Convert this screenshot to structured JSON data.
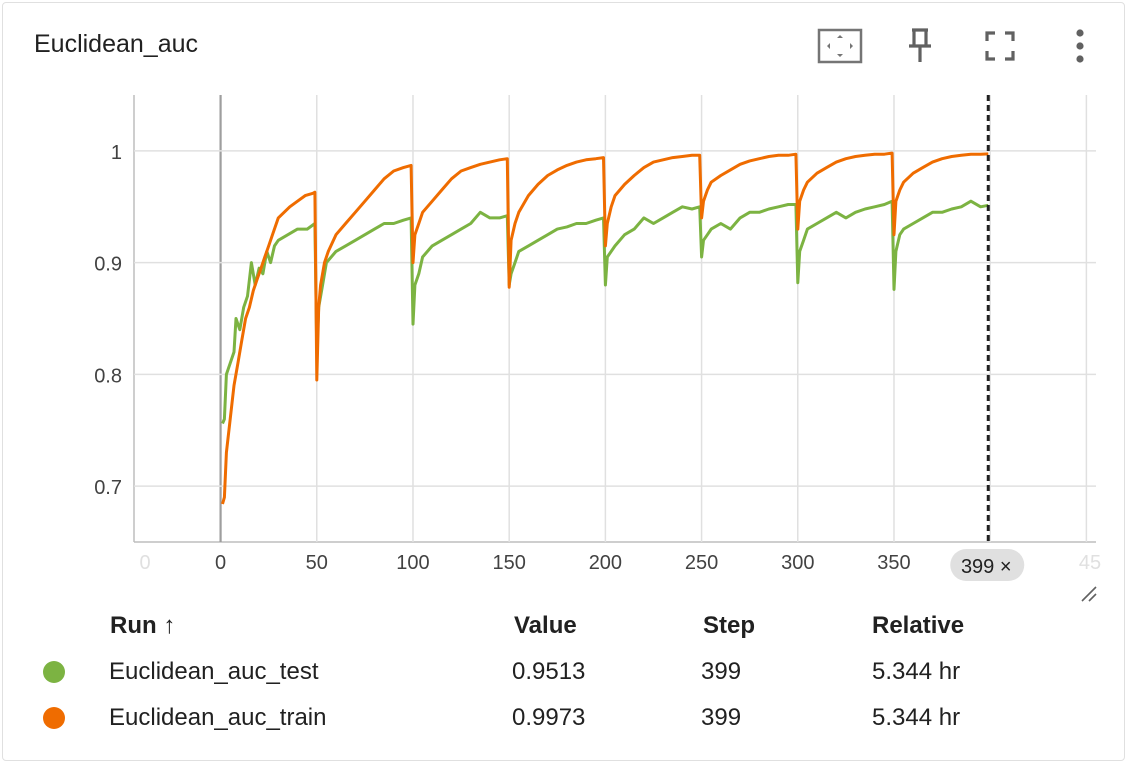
{
  "card": {
    "title": "Euclidean_auc"
  },
  "toolbar": {
    "fit_icon": "fit-domain-icon",
    "pin_icon": "pin-icon",
    "fullscreen_icon": "fullscreen-icon",
    "more_icon": "more-vert-icon"
  },
  "chart_data": {
    "type": "line",
    "title": "Euclidean_auc",
    "xlabel": "",
    "ylabel": "",
    "xlim": [
      -45,
      455
    ],
    "ylim": [
      0.65,
      1.05
    ],
    "x_ticks": [
      "0",
      "0",
      "50",
      "100",
      "150",
      "200",
      "250",
      "300",
      "350",
      "45"
    ],
    "y_ticks": [
      "0.7",
      "0.8",
      "0.9",
      "1"
    ],
    "cursor_step": 399,
    "cursor_label": "399",
    "grid": true,
    "series": [
      {
        "name": "Euclidean_auc_test",
        "color": "#7cb342",
        "x": [
          1,
          2,
          3,
          5,
          7,
          8,
          10,
          12,
          14,
          16,
          18,
          20,
          22,
          24,
          26,
          28,
          30,
          35,
          40,
          45,
          49,
          50,
          51,
          53,
          55,
          60,
          65,
          70,
          75,
          80,
          85,
          90,
          95,
          99,
          100,
          101,
          103,
          105,
          110,
          115,
          120,
          125,
          130,
          135,
          140,
          145,
          149,
          150,
          151,
          153,
          155,
          160,
          165,
          170,
          175,
          180,
          185,
          190,
          195,
          199,
          200,
          201,
          203,
          205,
          210,
          215,
          220,
          225,
          230,
          235,
          240,
          245,
          249,
          250,
          251,
          253,
          255,
          260,
          265,
          270,
          275,
          280,
          285,
          290,
          295,
          299,
          300,
          301,
          303,
          305,
          310,
          315,
          320,
          325,
          330,
          335,
          340,
          345,
          349,
          350,
          351,
          353,
          355,
          360,
          365,
          370,
          375,
          380,
          385,
          390,
          395,
          399
        ],
        "y": [
          0.756,
          0.76,
          0.8,
          0.81,
          0.82,
          0.85,
          0.84,
          0.86,
          0.87,
          0.9,
          0.88,
          0.895,
          0.89,
          0.91,
          0.9,
          0.915,
          0.92,
          0.925,
          0.93,
          0.93,
          0.935,
          0.82,
          0.86,
          0.88,
          0.9,
          0.91,
          0.915,
          0.92,
          0.925,
          0.93,
          0.935,
          0.935,
          0.938,
          0.94,
          0.845,
          0.88,
          0.89,
          0.905,
          0.915,
          0.92,
          0.925,
          0.93,
          0.935,
          0.945,
          0.94,
          0.94,
          0.942,
          0.88,
          0.89,
          0.9,
          0.91,
          0.915,
          0.92,
          0.925,
          0.93,
          0.932,
          0.935,
          0.935,
          0.938,
          0.94,
          0.88,
          0.905,
          0.91,
          0.915,
          0.925,
          0.93,
          0.94,
          0.935,
          0.94,
          0.945,
          0.95,
          0.948,
          0.95,
          0.905,
          0.92,
          0.925,
          0.93,
          0.935,
          0.93,
          0.94,
          0.945,
          0.945,
          0.948,
          0.95,
          0.952,
          0.952,
          0.882,
          0.91,
          0.92,
          0.93,
          0.935,
          0.94,
          0.945,
          0.94,
          0.945,
          0.948,
          0.95,
          0.952,
          0.955,
          0.876,
          0.91,
          0.925,
          0.93,
          0.935,
          0.94,
          0.945,
          0.945,
          0.948,
          0.95,
          0.955,
          0.95,
          0.9513
        ]
      },
      {
        "name": "Euclidean_auc_train",
        "color": "#ef6c00",
        "x": [
          1,
          2,
          3,
          5,
          7,
          9,
          11,
          13,
          15,
          17,
          19,
          21,
          23,
          25,
          27,
          30,
          33,
          36,
          40,
          44,
          48,
          49,
          50,
          51,
          52,
          54,
          56,
          60,
          65,
          70,
          75,
          80,
          85,
          90,
          95,
          99,
          100,
          101,
          103,
          105,
          110,
          115,
          120,
          125,
          130,
          135,
          140,
          145,
          149,
          150,
          151,
          153,
          155,
          160,
          165,
          170,
          175,
          180,
          185,
          190,
          195,
          199,
          200,
          201,
          203,
          205,
          210,
          215,
          220,
          225,
          230,
          235,
          240,
          245,
          249,
          250,
          251,
          253,
          255,
          260,
          265,
          270,
          275,
          280,
          285,
          290,
          295,
          299,
          300,
          301,
          303,
          305,
          310,
          315,
          320,
          325,
          330,
          335,
          340,
          345,
          349,
          350,
          351,
          353,
          355,
          360,
          365,
          370,
          375,
          380,
          385,
          390,
          395,
          399
        ],
        "y": [
          0.684,
          0.69,
          0.73,
          0.76,
          0.79,
          0.81,
          0.83,
          0.85,
          0.86,
          0.875,
          0.885,
          0.895,
          0.905,
          0.915,
          0.925,
          0.94,
          0.945,
          0.95,
          0.955,
          0.96,
          0.962,
          0.963,
          0.795,
          0.86,
          0.88,
          0.9,
          0.91,
          0.925,
          0.935,
          0.945,
          0.955,
          0.965,
          0.975,
          0.982,
          0.985,
          0.987,
          0.9,
          0.925,
          0.935,
          0.945,
          0.955,
          0.965,
          0.975,
          0.982,
          0.985,
          0.988,
          0.99,
          0.992,
          0.993,
          0.878,
          0.92,
          0.935,
          0.945,
          0.96,
          0.97,
          0.978,
          0.983,
          0.987,
          0.99,
          0.992,
          0.993,
          0.994,
          0.915,
          0.935,
          0.95,
          0.96,
          0.97,
          0.978,
          0.985,
          0.99,
          0.992,
          0.994,
          0.995,
          0.996,
          0.996,
          0.94,
          0.955,
          0.965,
          0.972,
          0.978,
          0.983,
          0.988,
          0.991,
          0.993,
          0.995,
          0.996,
          0.996,
          0.997,
          0.93,
          0.955,
          0.965,
          0.972,
          0.98,
          0.985,
          0.99,
          0.993,
          0.995,
          0.996,
          0.997,
          0.997,
          0.998,
          0.925,
          0.955,
          0.965,
          0.972,
          0.98,
          0.985,
          0.99,
          0.993,
          0.995,
          0.996,
          0.997,
          0.997,
          0.9973
        ]
      }
    ]
  },
  "table": {
    "headers": {
      "run": "Run ↑",
      "value": "Value",
      "step": "Step",
      "relative": "Relative"
    },
    "rows": [
      {
        "run": "Euclidean_auc_test",
        "value": "0.9513",
        "step": "399",
        "relative": "5.344 hr",
        "color": "#7cb342"
      },
      {
        "run": "Euclidean_auc_train",
        "value": "0.9973",
        "step": "399",
        "relative": "5.344 hr",
        "color": "#ef6c00"
      }
    ]
  }
}
